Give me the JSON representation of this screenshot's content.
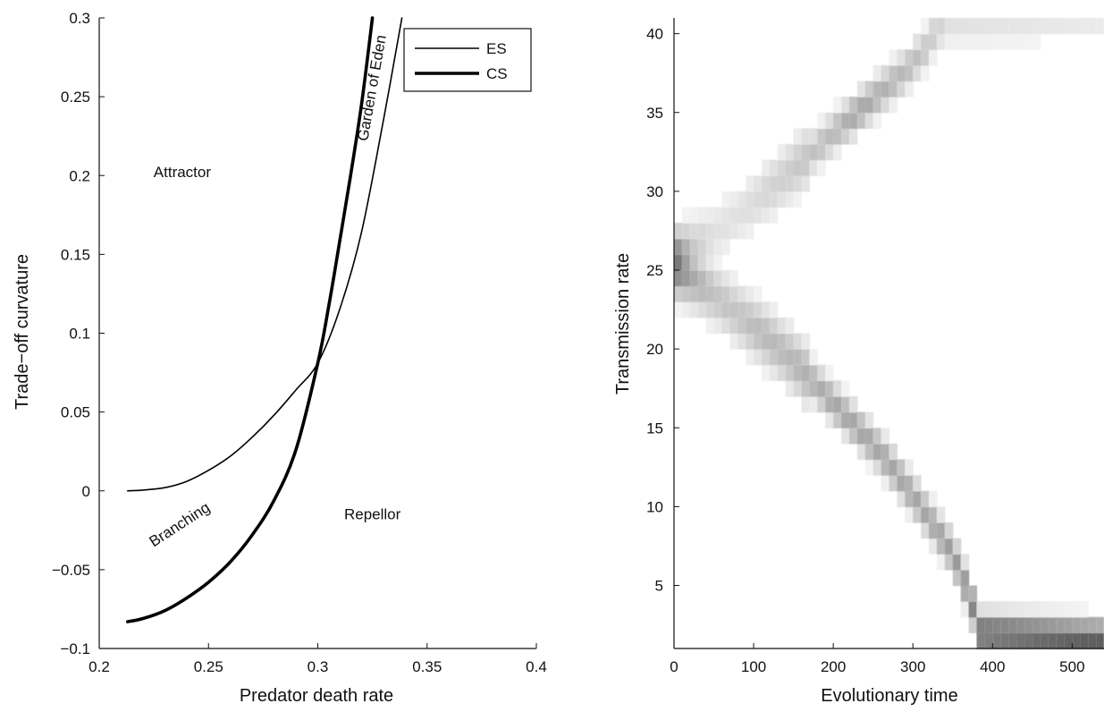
{
  "chart_data": [
    {
      "type": "line",
      "xlabel": "Predator death rate",
      "ylabel": "Trade−off curvature",
      "xlim": [
        0.2,
        0.4
      ],
      "ylim": [
        -0.1,
        0.3
      ],
      "x_ticks": [
        0.2,
        0.25,
        0.3,
        0.35,
        0.4
      ],
      "x_tick_labels": [
        "0.2",
        "0.25",
        "0.3",
        "0.35",
        "0.4"
      ],
      "y_ticks": [
        -0.1,
        -0.05,
        0,
        0.05,
        0.1,
        0.15,
        0.2,
        0.25,
        0.3
      ],
      "y_tick_labels": [
        "−0.1",
        "−0.05",
        "0",
        "0.05",
        "0.1",
        "0.15",
        "0.2",
        "0.25",
        "0.3"
      ],
      "grid": false,
      "legend": {
        "placement": "top-right",
        "entries": [
          "ES",
          "CS"
        ]
      },
      "series": [
        {
          "name": "ES",
          "line_style": "thin",
          "x": [
            0.213,
            0.22,
            0.23,
            0.24,
            0.25,
            0.26,
            0.27,
            0.28,
            0.29,
            0.3,
            0.31,
            0.32,
            0.33,
            0.3385
          ],
          "y": [
            0.0,
            0.0005,
            0.002,
            0.006,
            0.013,
            0.022,
            0.034,
            0.048,
            0.064,
            0.081,
            0.115,
            0.164,
            0.235,
            0.3
          ]
        },
        {
          "name": "CS",
          "line_style": "thick",
          "x": [
            0.213,
            0.22,
            0.23,
            0.24,
            0.25,
            0.26,
            0.27,
            0.28,
            0.29,
            0.3,
            0.305,
            0.31,
            0.315,
            0.32,
            0.325
          ],
          "y": [
            -0.083,
            -0.081,
            -0.076,
            -0.068,
            -0.058,
            -0.045,
            -0.028,
            -0.006,
            0.026,
            0.081,
            0.117,
            0.158,
            0.2,
            0.245,
            0.3
          ]
        }
      ],
      "annotations": [
        {
          "text": "Attractor",
          "x": 0.238,
          "y": 0.199,
          "rotate": 0
        },
        {
          "text": "Branching",
          "x": 0.238,
          "y": -0.024,
          "rotate": -33
        },
        {
          "text": "Repellor",
          "x": 0.325,
          "y": -0.018,
          "rotate": 0
        },
        {
          "text": "Garden of Eden",
          "x": 0.327,
          "y": 0.255,
          "rotate": -80
        }
      ]
    },
    {
      "type": "heatmap",
      "xlabel": "Evolutionary time",
      "ylabel": "Transmission rate",
      "xlim": [
        0,
        540
      ],
      "ylim": [
        1,
        41
      ],
      "x_ticks": [
        0,
        100,
        200,
        300,
        400,
        500
      ],
      "x_tick_labels": [
        "0",
        "100",
        "200",
        "300",
        "400",
        "500"
      ],
      "y_ticks": [
        5,
        10,
        15,
        20,
        25,
        30,
        35,
        40
      ],
      "y_tick_labels": [
        "5",
        "10",
        "15",
        "20",
        "25",
        "30",
        "35",
        "40"
      ],
      "grid": false,
      "colormap": "gray (darker = higher density)",
      "branches": [
        {
          "name": "",
          "t": [
            0,
            20,
            50,
            80,
            110,
            140,
            170,
            200,
            230,
            260,
            290,
            315,
            330,
            345,
            540
          ],
          "trait": [
            25.5,
            26.2,
            27.3,
            28.5,
            29.7,
            31,
            32.3,
            33.7,
            35,
            36.3,
            37.6,
            39,
            40.3,
            40.5,
            40.5
          ],
          "intensity": [
            0.75,
            0.3,
            0.15,
            0.15,
            0.2,
            0.25,
            0.3,
            0.35,
            0.45,
            0.4,
            0.35,
            0.3,
            0.25,
            0.15,
            0.1
          ]
        },
        {
          "name": "",
          "t": [
            0,
            20,
            50,
            80,
            110,
            140,
            170,
            200,
            230,
            260,
            290,
            320,
            350,
            370,
            385,
            540
          ],
          "trait": [
            25.5,
            24.7,
            23.5,
            22.2,
            21,
            19.7,
            18.2,
            16.6,
            15,
            13.4,
            11.4,
            9.3,
            7,
            4.5,
            2,
            1.5
          ],
          "intensity": [
            0.75,
            0.45,
            0.3,
            0.3,
            0.35,
            0.35,
            0.4,
            0.45,
            0.45,
            0.45,
            0.45,
            0.45,
            0.5,
            0.55,
            0.75,
            0.8
          ]
        }
      ]
    }
  ]
}
